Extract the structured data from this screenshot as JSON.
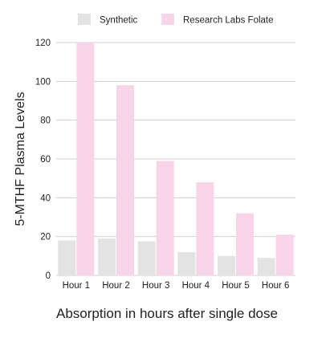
{
  "chart_data": {
    "type": "bar",
    "title": "",
    "xlabel": "Absorption in hours after single dose",
    "ylabel": "5-MTHF Plasma Levels",
    "categories": [
      "Hour 1",
      "Hour 2",
      "Hour 3",
      "Hour 4",
      "Hour 5",
      "Hour 6"
    ],
    "series": [
      {
        "name": "Synthetic",
        "color": "#e3e3e3",
        "values": [
          18,
          19,
          17.5,
          12,
          10,
          9
        ]
      },
      {
        "name": "Research Labs Folate",
        "color": "#f7d4e8",
        "values": [
          120,
          98,
          59,
          48,
          32,
          21
        ]
      }
    ],
    "ylim": [
      0,
      120
    ],
    "yticks": [
      0,
      20,
      40,
      60,
      80,
      100,
      120
    ],
    "grid": true,
    "legend_position": "top",
    "colors": {
      "gridline": "#cfcfcf",
      "text": "#222222"
    }
  }
}
